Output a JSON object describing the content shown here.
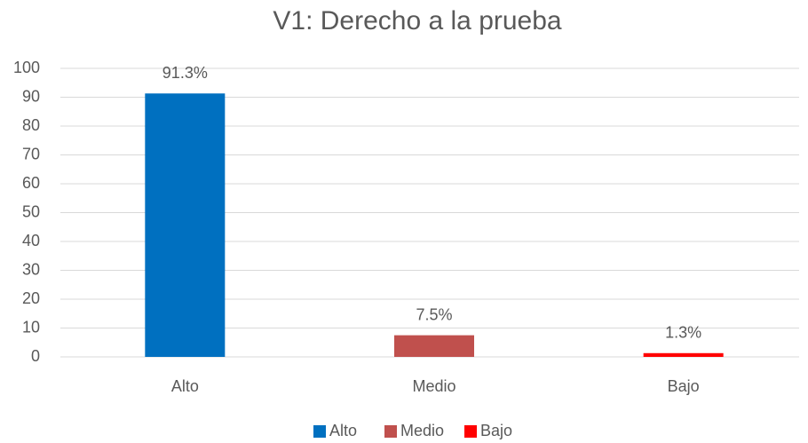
{
  "chart_data": {
    "type": "bar",
    "title": "V1: Derecho a la prueba",
    "categories": [
      "Alto",
      "Medio",
      "Bajo"
    ],
    "values": [
      91.3,
      7.5,
      1.3
    ],
    "value_labels": [
      "91.3%",
      "7.5%",
      "1.3%"
    ],
    "colors": [
      "#0070c0",
      "#c0504d",
      "#ff0000"
    ],
    "ylim": [
      0,
      100
    ],
    "yticks": [
      0,
      10,
      20,
      30,
      40,
      50,
      60,
      70,
      80,
      90,
      100
    ],
    "grid": true,
    "legend": "bottom"
  }
}
